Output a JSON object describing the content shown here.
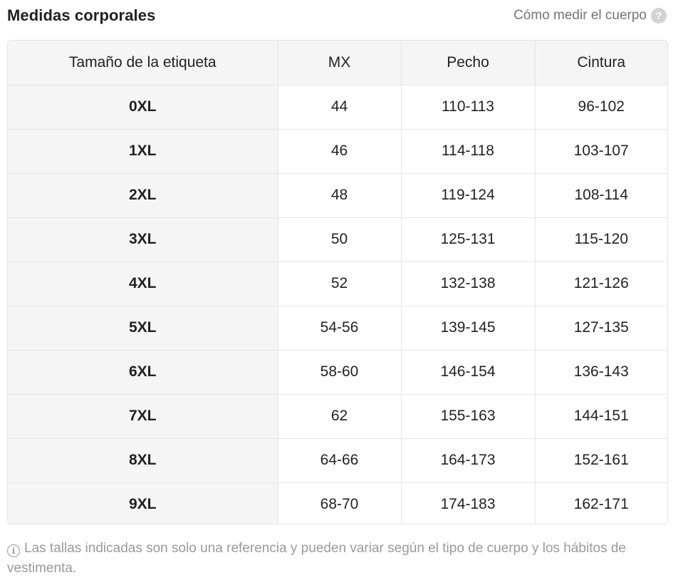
{
  "header": {
    "title": "Medidas corporales",
    "measure_link_label": "Cómo medir el cuerpo",
    "help_icon": "question-circle-icon",
    "help_glyph": "?"
  },
  "table": {
    "columns": [
      "Tamaño de la etiqueta",
      "MX",
      "Pecho",
      "Cintura"
    ],
    "rows": [
      [
        "0XL",
        "44",
        "110-113",
        "96-102"
      ],
      [
        "1XL",
        "46",
        "114-118",
        "103-107"
      ],
      [
        "2XL",
        "48",
        "119-124",
        "108-114"
      ],
      [
        "3XL",
        "50",
        "125-131",
        "115-120"
      ],
      [
        "4XL",
        "52",
        "132-138",
        "121-126"
      ],
      [
        "5XL",
        "54-56",
        "139-145",
        "127-135"
      ],
      [
        "6XL",
        "58-60",
        "146-154",
        "136-143"
      ],
      [
        "7XL",
        "62",
        "155-163",
        "144-151"
      ],
      [
        "8XL",
        "64-66",
        "164-173",
        "152-161"
      ],
      [
        "9XL",
        "68-70",
        "174-183",
        "162-171"
      ]
    ]
  },
  "note": {
    "icon": "info-circle-icon",
    "icon_glyph": "i",
    "text": "Las tallas indicadas son solo una referencia y pueden variar según el tipo de cuerpo y los hábitos de vestimenta."
  },
  "colors": {
    "text": "#222222",
    "muted": "#757575",
    "header_bg": "#f5f5f5",
    "border": "#e6e6e6"
  }
}
